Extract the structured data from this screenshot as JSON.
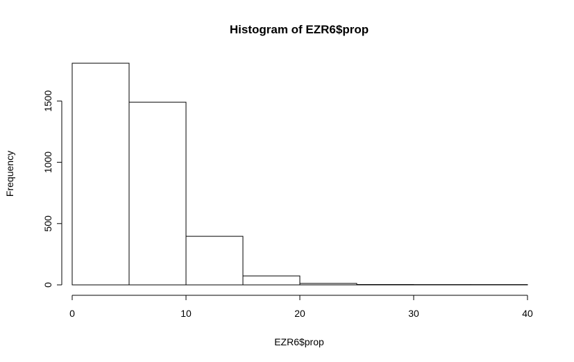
{
  "chart_data": {
    "type": "bar",
    "title": "Histogram of EZR6$prop",
    "xlabel": "EZR6$prop",
    "ylabel": "Frequency",
    "bins": [
      {
        "start": 0,
        "end": 5,
        "count": 1808
      },
      {
        "start": 5,
        "end": 10,
        "count": 1490
      },
      {
        "start": 10,
        "end": 15,
        "count": 396
      },
      {
        "start": 15,
        "end": 20,
        "count": 73
      },
      {
        "start": 20,
        "end": 25,
        "count": 12
      },
      {
        "start": 25,
        "end": 30,
        "count": 3
      },
      {
        "start": 30,
        "end": 35,
        "count": 2
      },
      {
        "start": 35,
        "end": 40,
        "count": 2
      }
    ],
    "xlim": [
      0,
      40
    ],
    "ylim": [
      0,
      1808
    ],
    "x_ticks": [
      0,
      10,
      20,
      30,
      40
    ],
    "y_ticks": [
      0,
      500,
      1000,
      1500
    ],
    "grid": false,
    "bar_fill": "#ffffff",
    "bar_stroke": "#000000"
  }
}
